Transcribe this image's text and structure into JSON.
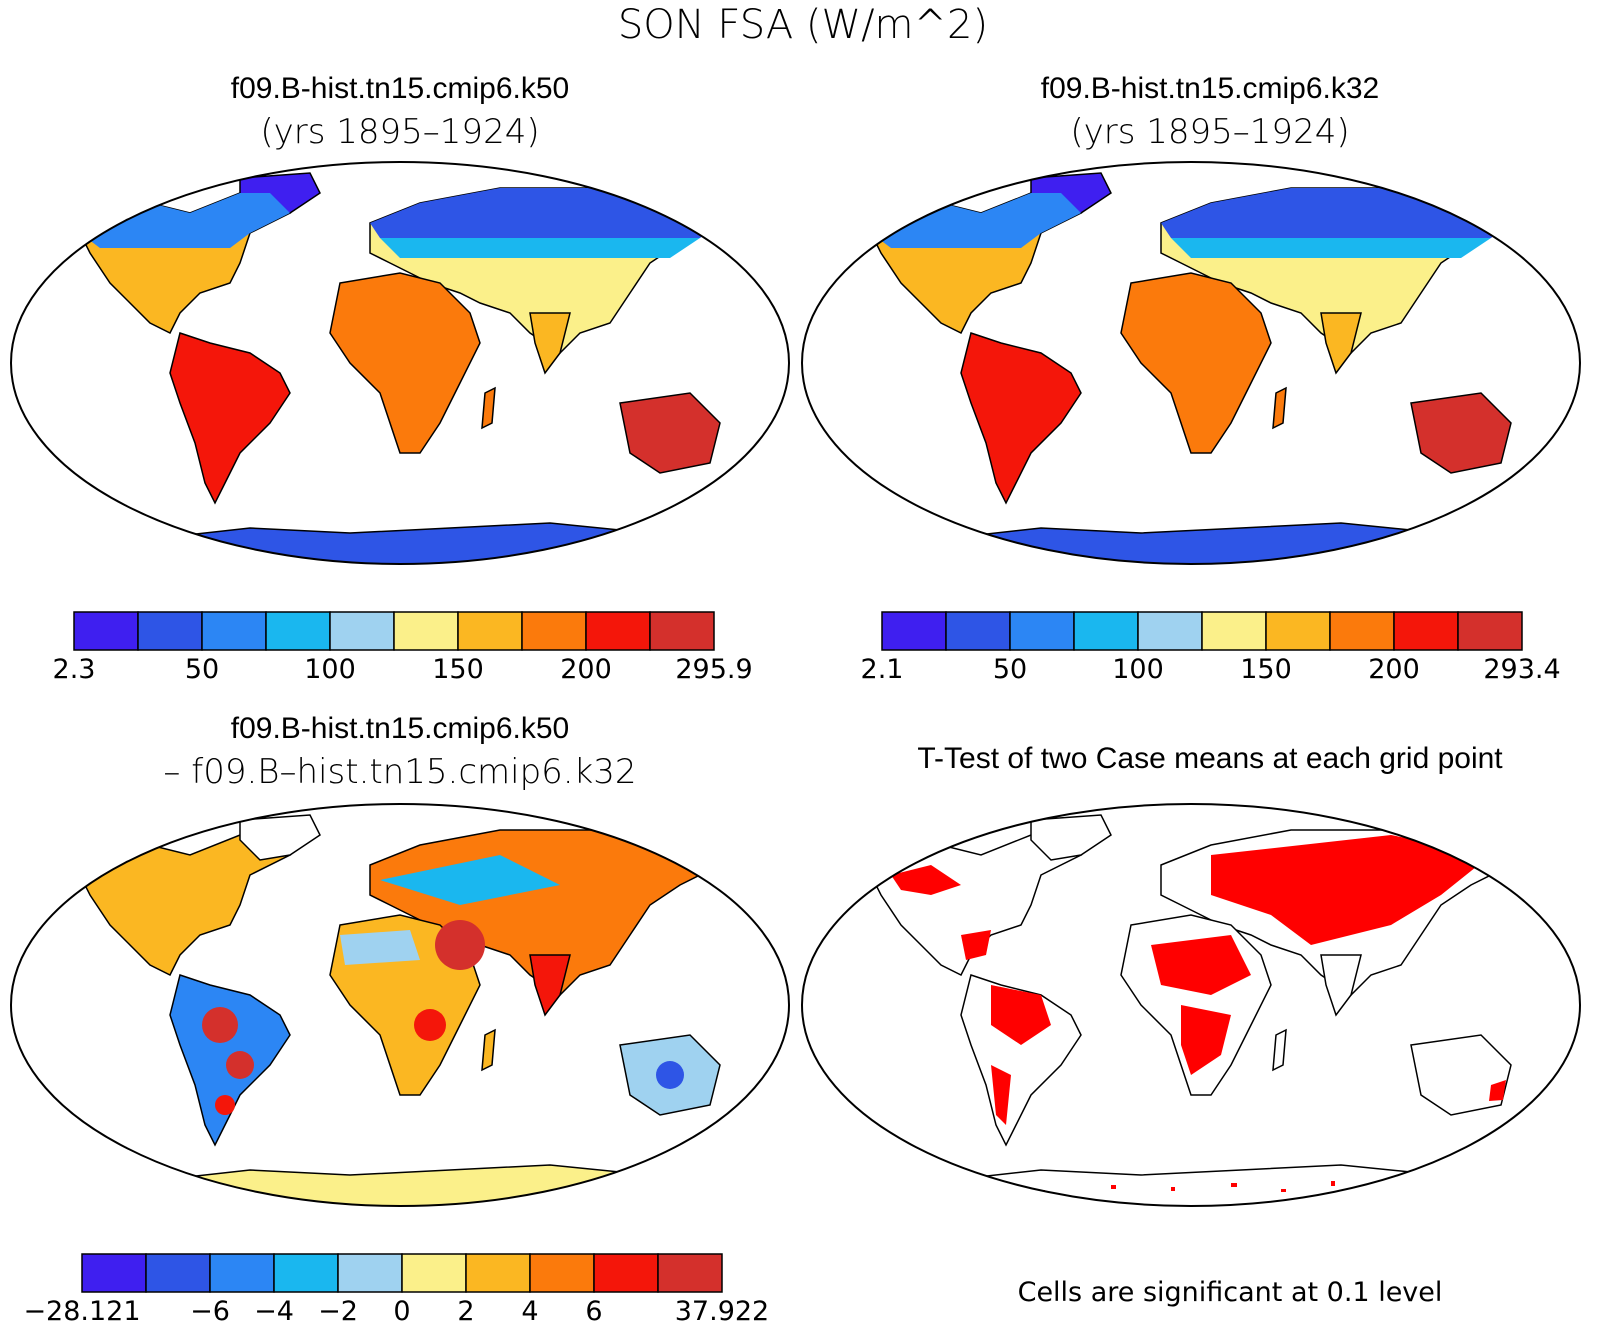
{
  "title": "SON FSA (W/m^2)",
  "panels": [
    {
      "id": "k50",
      "title_line1": "f09.B-hist.tn15.cmip6.k50",
      "title_line2": "(yrs 1895–1924)"
    },
    {
      "id": "k32",
      "title_line1": "f09.B-hist.tn15.cmip6.k32",
      "title_line2": "(yrs 1895–1924)"
    },
    {
      "id": "diff",
      "title_line1": "f09.B-hist.tn15.cmip6.k50",
      "title_line2": "– f09.B–hist.tn15.cmip6.k32"
    },
    {
      "id": "ttest",
      "title_line1": "T-Test of two Case means at each grid point",
      "note": "Cells are significant at 0.1 level"
    }
  ],
  "colorbars": [
    {
      "id": "k50",
      "labels": [
        "2.3",
        "50",
        "100",
        "150",
        "200",
        "295.9"
      ],
      "colors": [
        "#3f1ff0",
        "#2e55e6",
        "#2c86f4",
        "#1ab7ef",
        "#9fd2f0",
        "#fbf08a",
        "#fbb722",
        "#fb7a0c",
        "#f4160a",
        "#d4302c"
      ]
    },
    {
      "id": "k32",
      "labels": [
        "2.1",
        "50",
        "100",
        "150",
        "200",
        "293.4"
      ],
      "colors": [
        "#3f1ff0",
        "#2e55e6",
        "#2c86f4",
        "#1ab7ef",
        "#9fd2f0",
        "#fbf08a",
        "#fbb722",
        "#fb7a0c",
        "#f4160a",
        "#d4302c"
      ]
    },
    {
      "id": "diff",
      "labels": [
        "−28.121",
        "−6",
        "−4",
        "−2",
        "0",
        "2",
        "4",
        "6",
        "37.922"
      ],
      "colors": [
        "#3f1ff0",
        "#2e55e6",
        "#2c86f4",
        "#1ab7ef",
        "#9fd2f0",
        "#fbf08a",
        "#fbb722",
        "#fb7a0c",
        "#f4160a",
        "#d4302c"
      ]
    }
  ],
  "chart_data": [
    {
      "type": "heatmap",
      "map": "world-robinson",
      "title": "f09.B-hist.tn15.cmip6.k50",
      "subtitle": "(yrs 1895–1924)",
      "range": [
        2.3,
        295.9
      ],
      "tick_labels": [
        "2.3",
        "50",
        "100",
        "150",
        "200",
        "295.9"
      ]
    },
    {
      "type": "heatmap",
      "map": "world-robinson",
      "title": "f09.B-hist.tn15.cmip6.k32",
      "subtitle": "(yrs 1895–1924)",
      "range": [
        2.1,
        293.4
      ],
      "tick_labels": [
        "2.1",
        "50",
        "100",
        "150",
        "200",
        "293.4"
      ]
    },
    {
      "type": "heatmap",
      "map": "world-robinson",
      "title": "f09.B-hist.tn15.cmip6.k50 – f09.B–hist.tn15.cmip6.k32",
      "range": [
        -28.121,
        37.922
      ],
      "tick_labels": [
        "−28.121",
        "−6",
        "−4",
        "−2",
        "0",
        "2",
        "4",
        "6",
        "37.922"
      ]
    },
    {
      "type": "heatmap",
      "map": "world-robinson",
      "title": "T-Test of two Case means at each grid point",
      "note": "Cells are significant at 0.1 level",
      "significance_color": "#ff0000"
    }
  ]
}
